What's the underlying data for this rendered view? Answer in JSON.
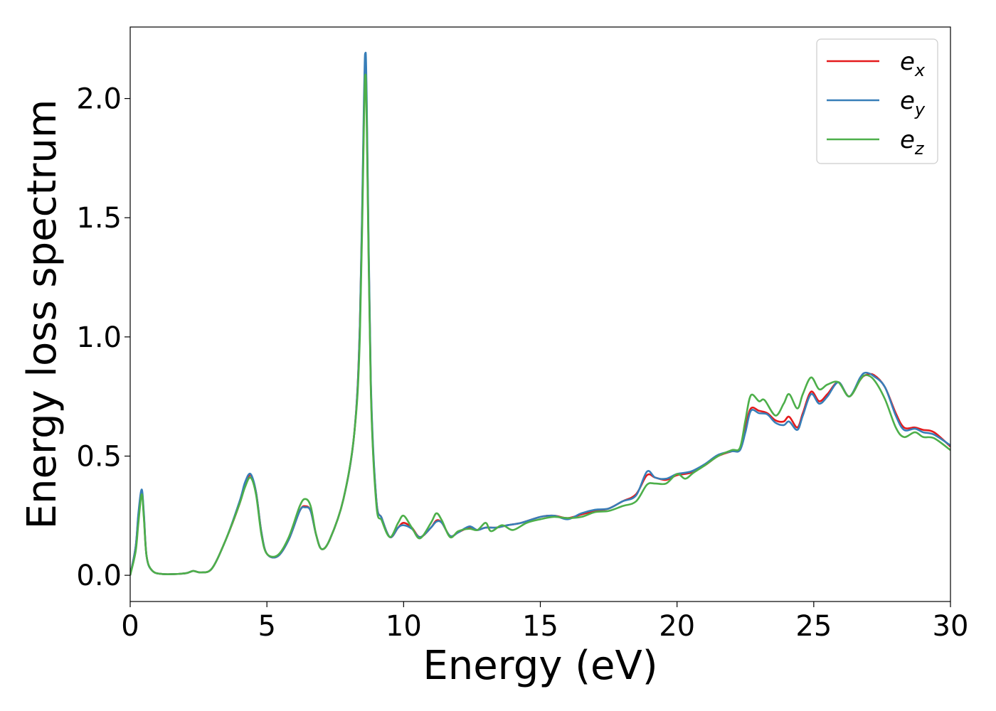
{
  "chart_data": {
    "type": "line",
    "title": "",
    "xlabel": "Energy (eV)",
    "ylabel": "Energy loss spectrum",
    "xlim": [
      0,
      30
    ],
    "ylim": [
      -0.11,
      2.3
    ],
    "xticks": [
      0,
      5,
      10,
      15,
      20,
      25,
      30
    ],
    "xtick_labels": [
      "0",
      "5",
      "10",
      "15",
      "20",
      "25",
      "30"
    ],
    "yticks": [
      0.0,
      0.5,
      1.0,
      1.5,
      2.0
    ],
    "ytick_labels": [
      "0.0",
      "0.5",
      "1.0",
      "1.5",
      "2.0"
    ],
    "grid": false,
    "legend_position": "top-right",
    "series": [
      {
        "name": "e",
        "subscript": "x",
        "color": "#e41a1c",
        "points": [
          [
            0,
            0
          ],
          [
            0.2,
            0.12
          ],
          [
            0.3,
            0.25
          ],
          [
            0.42,
            0.35
          ],
          [
            0.5,
            0.25
          ],
          [
            0.6,
            0.08
          ],
          [
            0.8,
            0.02
          ],
          [
            1.2,
            0.005
          ],
          [
            2.0,
            0.008
          ],
          [
            2.3,
            0.018
          ],
          [
            2.6,
            0.012
          ],
          [
            3.0,
            0.03
          ],
          [
            3.5,
            0.15
          ],
          [
            4.0,
            0.3
          ],
          [
            4.2,
            0.38
          ],
          [
            4.4,
            0.42
          ],
          [
            4.6,
            0.35
          ],
          [
            4.8,
            0.18
          ],
          [
            5.0,
            0.09
          ],
          [
            5.4,
            0.08
          ],
          [
            5.8,
            0.15
          ],
          [
            6.2,
            0.27
          ],
          [
            6.4,
            0.29
          ],
          [
            6.6,
            0.27
          ],
          [
            6.8,
            0.17
          ],
          [
            7.0,
            0.11
          ],
          [
            7.3,
            0.15
          ],
          [
            7.8,
            0.32
          ],
          [
            8.2,
            0.6
          ],
          [
            8.4,
            1.05
          ],
          [
            8.55,
            1.95
          ],
          [
            8.6,
            2.15
          ],
          [
            8.65,
            1.95
          ],
          [
            8.8,
            0.8
          ],
          [
            9.0,
            0.32
          ],
          [
            9.2,
            0.24
          ],
          [
            9.5,
            0.16
          ],
          [
            9.8,
            0.2
          ],
          [
            10.0,
            0.22
          ],
          [
            10.3,
            0.2
          ],
          [
            10.6,
            0.16
          ],
          [
            11.0,
            0.2
          ],
          [
            11.2,
            0.23
          ],
          [
            11.4,
            0.22
          ],
          [
            11.7,
            0.165
          ],
          [
            12.0,
            0.18
          ],
          [
            12.4,
            0.2
          ],
          [
            12.7,
            0.19
          ],
          [
            13.0,
            0.2
          ],
          [
            13.4,
            0.2
          ],
          [
            13.8,
            0.21
          ],
          [
            14.3,
            0.22
          ],
          [
            15.0,
            0.245
          ],
          [
            15.5,
            0.25
          ],
          [
            16.0,
            0.24
          ],
          [
            16.5,
            0.255
          ],
          [
            17.0,
            0.27
          ],
          [
            17.5,
            0.28
          ],
          [
            18.0,
            0.31
          ],
          [
            18.5,
            0.34
          ],
          [
            18.9,
            0.42
          ],
          [
            19.2,
            0.41
          ],
          [
            19.6,
            0.4
          ],
          [
            20.0,
            0.42
          ],
          [
            20.5,
            0.43
          ],
          [
            21.0,
            0.46
          ],
          [
            21.5,
            0.5
          ],
          [
            22.0,
            0.52
          ],
          [
            22.3,
            0.53
          ],
          [
            22.5,
            0.62
          ],
          [
            22.7,
            0.7
          ],
          [
            23.0,
            0.69
          ],
          [
            23.3,
            0.68
          ],
          [
            23.6,
            0.65
          ],
          [
            23.9,
            0.645
          ],
          [
            24.1,
            0.665
          ],
          [
            24.4,
            0.62
          ],
          [
            24.6,
            0.68
          ],
          [
            24.9,
            0.77
          ],
          [
            25.2,
            0.73
          ],
          [
            25.5,
            0.76
          ],
          [
            25.9,
            0.81
          ],
          [
            26.3,
            0.75
          ],
          [
            26.7,
            0.82
          ],
          [
            26.9,
            0.84
          ],
          [
            27.2,
            0.84
          ],
          [
            27.6,
            0.79
          ],
          [
            28.0,
            0.68
          ],
          [
            28.3,
            0.62
          ],
          [
            28.7,
            0.62
          ],
          [
            29.0,
            0.61
          ],
          [
            29.4,
            0.6
          ],
          [
            30.0,
            0.54
          ]
        ]
      },
      {
        "name": "e",
        "subscript": "y",
        "color": "#377eb8",
        "points": [
          [
            0,
            0
          ],
          [
            0.2,
            0.12
          ],
          [
            0.3,
            0.26
          ],
          [
            0.42,
            0.36
          ],
          [
            0.5,
            0.26
          ],
          [
            0.6,
            0.08
          ],
          [
            0.8,
            0.02
          ],
          [
            1.2,
            0.005
          ],
          [
            2.0,
            0.008
          ],
          [
            2.3,
            0.018
          ],
          [
            2.6,
            0.012
          ],
          [
            3.0,
            0.03
          ],
          [
            3.5,
            0.15
          ],
          [
            4.0,
            0.31
          ],
          [
            4.2,
            0.39
          ],
          [
            4.4,
            0.425
          ],
          [
            4.6,
            0.35
          ],
          [
            4.8,
            0.18
          ],
          [
            5.0,
            0.09
          ],
          [
            5.4,
            0.08
          ],
          [
            5.8,
            0.15
          ],
          [
            6.2,
            0.27
          ],
          [
            6.4,
            0.285
          ],
          [
            6.6,
            0.27
          ],
          [
            6.8,
            0.17
          ],
          [
            7.0,
            0.11
          ],
          [
            7.3,
            0.15
          ],
          [
            7.8,
            0.32
          ],
          [
            8.2,
            0.6
          ],
          [
            8.4,
            1.05
          ],
          [
            8.55,
            2.0
          ],
          [
            8.6,
            2.19
          ],
          [
            8.65,
            2.0
          ],
          [
            8.8,
            0.82
          ],
          [
            9.0,
            0.32
          ],
          [
            9.2,
            0.24
          ],
          [
            9.5,
            0.16
          ],
          [
            9.8,
            0.2
          ],
          [
            10.0,
            0.21
          ],
          [
            10.3,
            0.195
          ],
          [
            10.6,
            0.16
          ],
          [
            11.0,
            0.2
          ],
          [
            11.2,
            0.225
          ],
          [
            11.4,
            0.22
          ],
          [
            11.7,
            0.165
          ],
          [
            12.0,
            0.18
          ],
          [
            12.4,
            0.205
          ],
          [
            12.7,
            0.19
          ],
          [
            13.0,
            0.2
          ],
          [
            13.4,
            0.2
          ],
          [
            13.8,
            0.21
          ],
          [
            14.3,
            0.22
          ],
          [
            15.0,
            0.245
          ],
          [
            15.5,
            0.25
          ],
          [
            16.0,
            0.235
          ],
          [
            16.5,
            0.26
          ],
          [
            17.0,
            0.275
          ],
          [
            17.5,
            0.28
          ],
          [
            18.0,
            0.31
          ],
          [
            18.5,
            0.335
          ],
          [
            18.9,
            0.435
          ],
          [
            19.2,
            0.41
          ],
          [
            19.6,
            0.405
          ],
          [
            20.0,
            0.425
          ],
          [
            20.5,
            0.435
          ],
          [
            21.0,
            0.465
          ],
          [
            21.5,
            0.505
          ],
          [
            22.0,
            0.52
          ],
          [
            22.3,
            0.525
          ],
          [
            22.5,
            0.6
          ],
          [
            22.7,
            0.69
          ],
          [
            23.0,
            0.68
          ],
          [
            23.3,
            0.675
          ],
          [
            23.6,
            0.64
          ],
          [
            23.9,
            0.63
          ],
          [
            24.1,
            0.645
          ],
          [
            24.4,
            0.61
          ],
          [
            24.6,
            0.67
          ],
          [
            24.9,
            0.76
          ],
          [
            25.2,
            0.72
          ],
          [
            25.5,
            0.75
          ],
          [
            25.9,
            0.81
          ],
          [
            26.3,
            0.75
          ],
          [
            26.7,
            0.83
          ],
          [
            26.9,
            0.85
          ],
          [
            27.2,
            0.835
          ],
          [
            27.6,
            0.79
          ],
          [
            28.0,
            0.67
          ],
          [
            28.3,
            0.61
          ],
          [
            28.7,
            0.615
          ],
          [
            29.0,
            0.6
          ],
          [
            29.4,
            0.59
          ],
          [
            30.0,
            0.545
          ]
        ]
      },
      {
        "name": "e",
        "subscript": "z",
        "color": "#4daf4a",
        "points": [
          [
            0,
            0
          ],
          [
            0.2,
            0.1
          ],
          [
            0.3,
            0.22
          ],
          [
            0.42,
            0.34
          ],
          [
            0.5,
            0.24
          ],
          [
            0.6,
            0.08
          ],
          [
            0.8,
            0.02
          ],
          [
            1.2,
            0.005
          ],
          [
            2.0,
            0.008
          ],
          [
            2.3,
            0.018
          ],
          [
            2.6,
            0.012
          ],
          [
            3.0,
            0.03
          ],
          [
            3.5,
            0.15
          ],
          [
            4.0,
            0.3
          ],
          [
            4.2,
            0.37
          ],
          [
            4.4,
            0.41
          ],
          [
            4.6,
            0.34
          ],
          [
            4.8,
            0.17
          ],
          [
            5.0,
            0.09
          ],
          [
            5.4,
            0.085
          ],
          [
            5.8,
            0.16
          ],
          [
            6.2,
            0.29
          ],
          [
            6.4,
            0.32
          ],
          [
            6.6,
            0.29
          ],
          [
            6.8,
            0.17
          ],
          [
            7.0,
            0.11
          ],
          [
            7.3,
            0.15
          ],
          [
            7.8,
            0.32
          ],
          [
            8.2,
            0.6
          ],
          [
            8.4,
            1.0
          ],
          [
            8.55,
            1.9
          ],
          [
            8.6,
            2.1
          ],
          [
            8.65,
            1.9
          ],
          [
            8.8,
            0.78
          ],
          [
            9.0,
            0.3
          ],
          [
            9.2,
            0.23
          ],
          [
            9.5,
            0.16
          ],
          [
            9.8,
            0.22
          ],
          [
            10.0,
            0.25
          ],
          [
            10.3,
            0.2
          ],
          [
            10.6,
            0.155
          ],
          [
            11.0,
            0.22
          ],
          [
            11.2,
            0.26
          ],
          [
            11.4,
            0.23
          ],
          [
            11.7,
            0.16
          ],
          [
            12.0,
            0.185
          ],
          [
            12.4,
            0.195
          ],
          [
            12.7,
            0.19
          ],
          [
            13.0,
            0.22
          ],
          [
            13.2,
            0.185
          ],
          [
            13.6,
            0.21
          ],
          [
            14.0,
            0.19
          ],
          [
            14.5,
            0.22
          ],
          [
            15.0,
            0.235
          ],
          [
            15.5,
            0.245
          ],
          [
            16.0,
            0.24
          ],
          [
            16.5,
            0.245
          ],
          [
            17.0,
            0.265
          ],
          [
            17.5,
            0.27
          ],
          [
            18.0,
            0.29
          ],
          [
            18.5,
            0.31
          ],
          [
            18.9,
            0.38
          ],
          [
            19.2,
            0.385
          ],
          [
            19.6,
            0.385
          ],
          [
            20.0,
            0.425
          ],
          [
            20.3,
            0.405
          ],
          [
            20.6,
            0.43
          ],
          [
            21.0,
            0.46
          ],
          [
            21.5,
            0.5
          ],
          [
            22.0,
            0.525
          ],
          [
            22.3,
            0.535
          ],
          [
            22.5,
            0.65
          ],
          [
            22.7,
            0.755
          ],
          [
            23.0,
            0.73
          ],
          [
            23.2,
            0.735
          ],
          [
            23.6,
            0.67
          ],
          [
            23.9,
            0.72
          ],
          [
            24.1,
            0.76
          ],
          [
            24.4,
            0.7
          ],
          [
            24.6,
            0.76
          ],
          [
            24.9,
            0.83
          ],
          [
            25.2,
            0.78
          ],
          [
            25.5,
            0.8
          ],
          [
            25.9,
            0.81
          ],
          [
            26.3,
            0.75
          ],
          [
            26.7,
            0.82
          ],
          [
            26.9,
            0.84
          ],
          [
            27.2,
            0.82
          ],
          [
            27.6,
            0.74
          ],
          [
            28.0,
            0.62
          ],
          [
            28.3,
            0.58
          ],
          [
            28.7,
            0.6
          ],
          [
            29.0,
            0.58
          ],
          [
            29.4,
            0.575
          ],
          [
            30.0,
            0.525
          ]
        ]
      }
    ]
  }
}
